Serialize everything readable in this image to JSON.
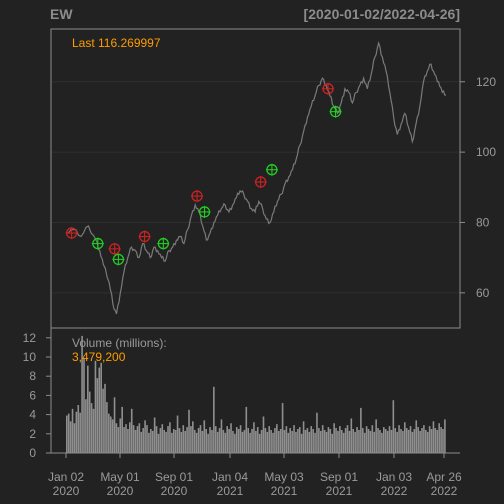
{
  "header": {
    "symbol": "EW",
    "date_range": "[2020-01-02/2022-04-26]"
  },
  "price_panel": {
    "last_label": "Last 116.269997"
  },
  "volume_panel": {
    "label": "Volume (millions):",
    "value": "3,479,200"
  },
  "colors": {
    "background": "#222222",
    "panel_border": "#8c8c8c",
    "grid": "#2f2f2f",
    "price_line": "#7a7a7a",
    "volume_bar": "#8f8f8f",
    "accent_text": "#ff9d00",
    "sell_marker": "#cc2222",
    "buy_marker": "#22cc22"
  },
  "chart_data": [
    {
      "type": "line",
      "title": "EW",
      "subtitle": "[2020-01-02/2022-04-26]",
      "x_tick_labels": [
        {
          "month": "Jan 02",
          "year": "2020"
        },
        {
          "month": "May 01",
          "year": "2020"
        },
        {
          "month": "Sep 01",
          "year": "2020"
        },
        {
          "month": "Jan 04",
          "year": "2021"
        },
        {
          "month": "May 03",
          "year": "2021"
        },
        {
          "month": "Sep 01",
          "year": "2021"
        },
        {
          "month": "Jan 03",
          "year": "2022"
        },
        {
          "month": "Apr 26",
          "year": "2022"
        }
      ],
      "y_ticks": [
        60,
        80,
        100,
        120
      ],
      "ylim": [
        50,
        135
      ],
      "grid": true,
      "series": [
        {
          "points": [
            [
              0,
              77
            ],
            [
              4,
              78
            ],
            [
              8,
              76
            ],
            [
              12,
              79
            ],
            [
              16,
              75
            ],
            [
              18,
              72
            ],
            [
              20,
              68
            ],
            [
              23,
              63
            ],
            [
              25,
              57
            ],
            [
              27,
              54
            ],
            [
              29,
              60
            ],
            [
              31,
              66
            ],
            [
              33,
              70
            ],
            [
              35,
              73
            ],
            [
              37,
              72
            ],
            [
              39,
              70
            ],
            [
              41,
              74
            ],
            [
              43,
              72
            ],
            [
              45,
              70
            ],
            [
              47,
              73
            ],
            [
              49,
              72
            ],
            [
              51,
              70
            ],
            [
              53,
              69
            ],
            [
              55,
              72
            ],
            [
              57,
              73
            ],
            [
              59,
              75
            ],
            [
              61,
              76
            ],
            [
              63,
              74
            ],
            [
              65,
              78
            ],
            [
              67,
              82
            ],
            [
              69,
              85
            ],
            [
              71,
              83
            ],
            [
              73,
              79
            ],
            [
              75,
              75
            ],
            [
              77,
              77
            ],
            [
              79,
              80
            ],
            [
              81,
              82
            ],
            [
              83,
              84
            ],
            [
              85,
              85
            ],
            [
              87,
              83
            ],
            [
              89,
              85
            ],
            [
              91,
              87
            ],
            [
              93,
              89
            ],
            [
              95,
              88
            ],
            [
              97,
              86
            ],
            [
              99,
              84
            ],
            [
              101,
              83
            ],
            [
              103,
              86
            ],
            [
              105,
              84
            ],
            [
              107,
              81
            ],
            [
              109,
              80
            ],
            [
              111,
              83
            ],
            [
              113,
              86
            ],
            [
              115,
              88
            ],
            [
              117,
              91
            ],
            [
              119,
              93
            ],
            [
              121,
              95
            ],
            [
              123,
              98
            ],
            [
              125,
              102
            ],
            [
              127,
              106
            ],
            [
              129,
              110
            ],
            [
              131,
              113
            ],
            [
              133,
              116
            ],
            [
              135,
              119
            ],
            [
              137,
              121
            ],
            [
              139,
              119
            ],
            [
              141,
              116
            ],
            [
              143,
              113
            ],
            [
              145,
              111
            ],
            [
              147,
              114
            ],
            [
              149,
              118
            ],
            [
              151,
              117
            ],
            [
              153,
              114
            ],
            [
              155,
              117
            ],
            [
              157,
              119
            ],
            [
              159,
              121
            ],
            [
              161,
              118
            ],
            [
              163,
              122
            ],
            [
              165,
              127
            ],
            [
              167,
              131
            ],
            [
              169,
              127
            ],
            [
              171,
              123
            ],
            [
              173,
              117
            ],
            [
              175,
              110
            ],
            [
              177,
              105
            ],
            [
              179,
              108
            ],
            [
              181,
              111
            ],
            [
              183,
              107
            ],
            [
              185,
              103
            ],
            [
              187,
              108
            ],
            [
              189,
              113
            ],
            [
              191,
              120
            ],
            [
              193,
              123
            ],
            [
              195,
              125
            ],
            [
              197,
              122
            ],
            [
              199,
              120
            ],
            [
              201,
              117
            ],
            [
              203,
              116.27
            ]
          ]
        }
      ],
      "markers": [
        {
          "kind": "sell",
          "x": 3,
          "y": 77
        },
        {
          "kind": "buy",
          "x": 17,
          "y": 74
        },
        {
          "kind": "sell",
          "x": 26,
          "y": 72.5
        },
        {
          "kind": "buy",
          "x": 28,
          "y": 69.5
        },
        {
          "kind": "sell",
          "x": 42,
          "y": 76
        },
        {
          "kind": "buy",
          "x": 52,
          "y": 74
        },
        {
          "kind": "sell",
          "x": 70,
          "y": 87.5
        },
        {
          "kind": "buy",
          "x": 74,
          "y": 83
        },
        {
          "kind": "sell",
          "x": 104,
          "y": 91.5
        },
        {
          "kind": "buy",
          "x": 110,
          "y": 95
        },
        {
          "kind": "sell",
          "x": 140,
          "y": 118
        },
        {
          "kind": "buy",
          "x": 144,
          "y": 111.5
        }
      ]
    },
    {
      "type": "bar",
      "title": "Volume (millions):",
      "y_ticks": [
        0,
        2,
        4,
        6,
        8,
        10,
        12
      ],
      "ylim": [
        0,
        12.5
      ],
      "values": [
        3.9,
        4.1,
        3.3,
        4.6,
        3.1,
        4.3,
        5.0,
        4.2,
        12.2,
        9.8,
        5.6,
        9.1,
        6.4,
        5.2,
        4.6,
        9.6,
        7.8,
        8.9,
        9.4,
        6.7,
        7.2,
        5.3,
        4.1,
        3.8,
        3.5,
        5.8,
        3.1,
        2.7,
        3.6,
        4.8,
        2.7,
        3.0,
        2.5,
        3.2,
        4.6,
        2.9,
        2.4,
        2.8,
        3.1,
        2.2,
        2.6,
        3.4,
        2.9,
        2.1,
        2.5,
        2.3,
        3.7,
        2.8,
        2.0,
        2.6,
        3.0,
        2.4,
        2.2,
        2.8,
        3.2,
        2.1,
        2.5,
        2.4,
        3.9,
        2.6,
        2.2,
        2.9,
        2.3,
        2.7,
        4.5,
        2.8,
        3.3,
        2.4,
        2.1,
        2.6,
        2.9,
        2.3,
        3.4,
        2.5,
        2.0,
        2.7,
        2.4,
        6.9,
        2.8,
        2.2,
        2.6,
        3.5,
        2.4,
        2.1,
        2.8,
        2.5,
        3.1,
        2.3,
        2.0,
        2.7,
        2.5,
        2.9,
        2.2,
        2.4,
        4.8,
        2.6,
        2.1,
        2.5,
        3.2,
        2.3,
        2.7,
        2.0,
        2.4,
        3.8,
        2.6,
        2.2,
        2.8,
        2.4,
        2.1,
        2.6,
        3.0,
        2.3,
        2.5,
        5.2,
        2.4,
        2.8,
        2.1,
        2.6,
        2.3,
        2.9,
        2.2,
        2.5,
        2.7,
        2.0,
        3.3,
        2.4,
        2.6,
        2.2,
        2.8,
        2.5,
        2.1,
        4.2,
        2.6,
        2.3,
        2.9,
        2.4,
        2.2,
        2.7,
        2.5,
        2.0,
        3.1,
        2.6,
        2.3,
        2.8,
        2.4,
        2.1,
        2.6,
        2.9,
        2.3,
        3.6,
        2.5,
        2.2,
        2.7,
        2.4,
        4.7,
        2.6,
        2.1,
        2.8,
        2.5,
        2.3,
        2.9,
        2.2,
        3.5,
        2.6,
        2.4,
        2.1,
        2.7,
        2.5,
        2.3,
        2.8,
        2.4,
        5.5,
        2.6,
        2.2,
        2.9,
        2.5,
        2.3,
        3.2,
        2.6,
        2.4,
        2.8,
        2.2,
        2.5,
        3.4,
        2.7,
        2.3,
        2.6,
        2.9,
        2.4,
        2.2,
        2.8,
        2.5,
        3.3,
        2.6,
        2.4,
        3.1,
        2.7,
        2.5,
        3.5
      ]
    }
  ]
}
